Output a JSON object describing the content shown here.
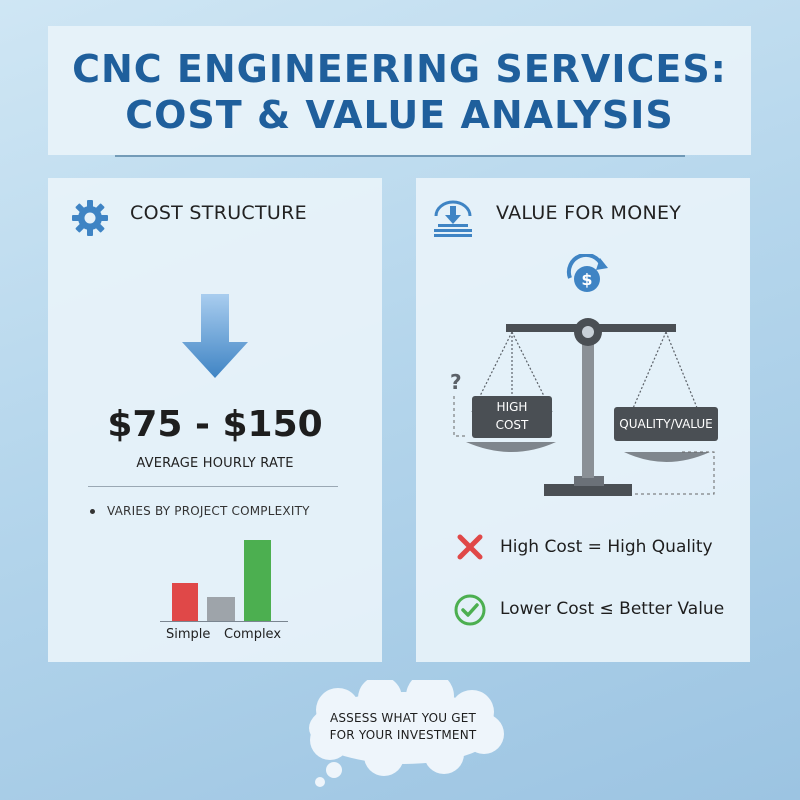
{
  "header": {
    "title_line1": "CNC ENGINEERING SERVICES:",
    "title_line2": "COST & VALUE ANALYSIS"
  },
  "cost_panel": {
    "title": "COST STRUCTURE",
    "icon": "gear-icon",
    "price": "$75 - $150",
    "price_caption": "AVERAGE HOURLY RATE",
    "bullet": "VARIES BY PROJECT COMPLEXITY",
    "chart_labels": [
      "Simple",
      "Complex"
    ],
    "bar_colors": [
      "#e04848",
      "#9ea4aa",
      "#4caf50"
    ]
  },
  "value_panel": {
    "title": "VALUE FOR MONEY",
    "icon": "download-tray-icon",
    "left_pan_label_1": "HIGH",
    "left_pan_label_2": "COST",
    "right_pan_label": "QUALITY/VALUE",
    "question_mark": "?",
    "claims": [
      {
        "icon": "red-x-icon",
        "text": "High Cost = High Quality"
      },
      {
        "icon": "green-check-icon",
        "text": "Lower Cost ≤ Better Value"
      }
    ]
  },
  "footer": {
    "cloud_line1": "ASSESS WHAT YOU GET",
    "cloud_line2": "FOR YOUR INVESTMENT"
  },
  "colors": {
    "title_blue": "#1f5f9c",
    "accent_blue": "#4a8fd0",
    "red": "#e04848",
    "green": "#4caf50"
  }
}
